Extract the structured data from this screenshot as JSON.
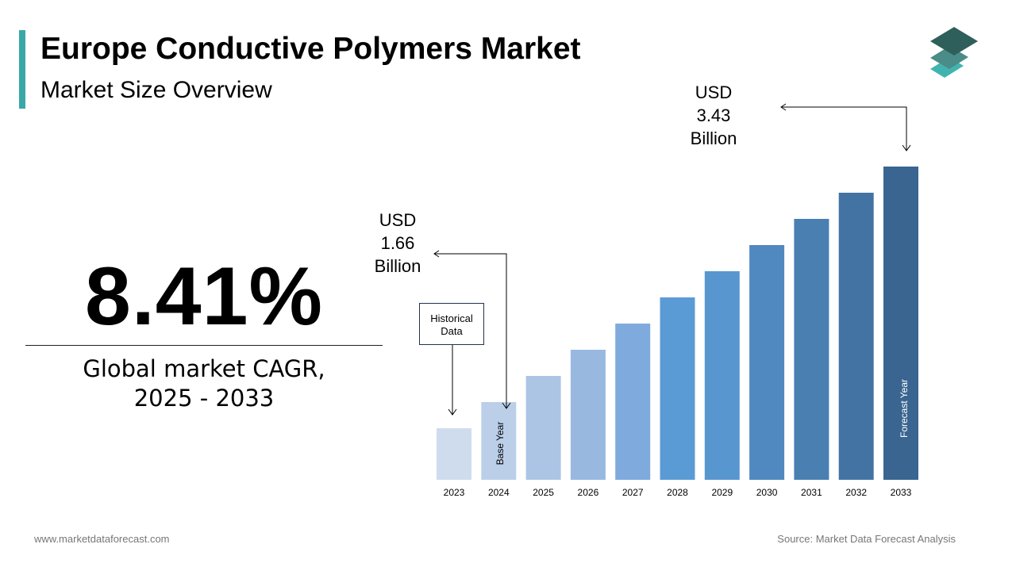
{
  "header": {
    "title": "Europe Conductive Polymers Market",
    "subtitle": "Market Size Overview"
  },
  "kpi": {
    "cagr": "8.41%",
    "label_line1": "Global market CAGR,",
    "label_line2": "2025 - 2033"
  },
  "annotations": {
    "start": {
      "line1": "USD",
      "line2": "1.66",
      "line3": "Billion"
    },
    "end": {
      "line1": "USD",
      "line2": "3.43",
      "line3": "Billion"
    },
    "historical": {
      "line1": "Historical",
      "line2": "Data"
    },
    "base_year": "Base Year",
    "forecast_year": "Forecast Year"
  },
  "footer": {
    "website": "www.marketdataforecast.com",
    "source": "Source: Market Data Forecast Analysis"
  },
  "colors": {
    "accent": "#3aa8a8",
    "logo_top": "#2f5f5a",
    "logo_mid": "#4a8c88",
    "logo_bottom": "#42b4b0"
  },
  "chart_data": {
    "type": "bar",
    "categories": [
      "2023",
      "2024",
      "2025",
      "2026",
      "2027",
      "2028",
      "2029",
      "2030",
      "2031",
      "2032",
      "2033"
    ],
    "values": [
      null,
      1.66,
      null,
      null,
      null,
      null,
      null,
      null,
      null,
      null,
      3.43
    ],
    "unit": "USD Billion",
    "grid": false,
    "bar_colors": [
      "#cfdcee",
      "#bccfe9",
      "#adc5e5",
      "#98b8e0",
      "#7faade",
      "#5b9bd5",
      "#5896d0",
      "#5089c0",
      "#4a7fb2",
      "#4373a2",
      "#3a6590"
    ]
  }
}
